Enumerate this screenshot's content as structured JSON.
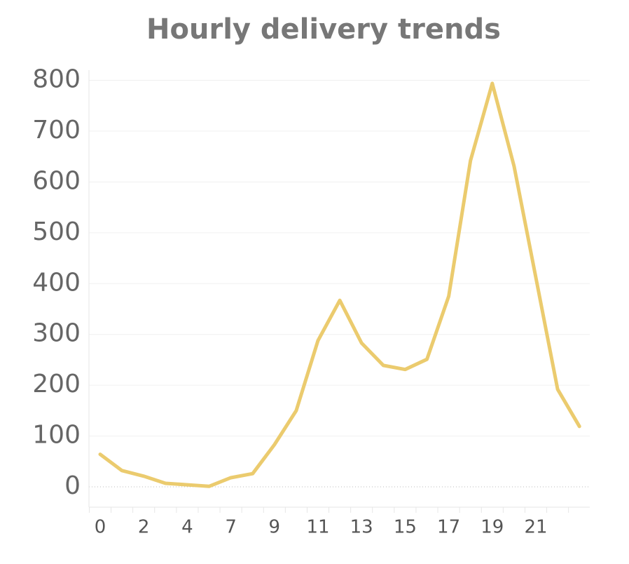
{
  "chart_data": {
    "type": "line",
    "title": "Hourly delivery trends",
    "categories": [
      "0",
      null,
      "2",
      null,
      "4",
      null,
      "7",
      null,
      "9",
      null,
      "11",
      null,
      "13",
      null,
      "15",
      null,
      "17",
      null,
      "19",
      null,
      "21",
      null,
      null
    ],
    "series": [
      {
        "name": null,
        "color": "#ebcb6e",
        "values": [
          64,
          32,
          21,
          7,
          4,
          1,
          18,
          26,
          83,
          150,
          288,
          367,
          283,
          239,
          231,
          251,
          375,
          642,
          794,
          631,
          412,
          192,
          119
        ]
      }
    ],
    "ylim": [
      -40,
      820
    ],
    "yticks": [
      0,
      100,
      200,
      300,
      400,
      500,
      600,
      700,
      800
    ],
    "grid": true
  }
}
